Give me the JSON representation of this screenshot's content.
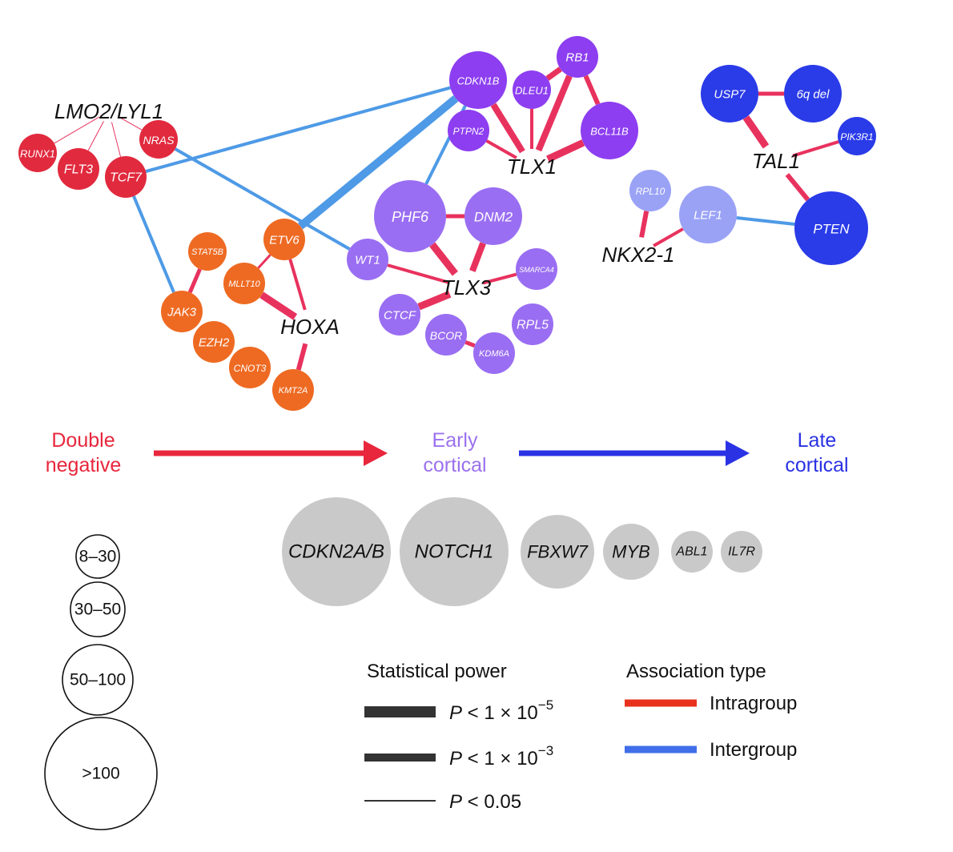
{
  "colors": {
    "double_negative": "#e12a3e",
    "hoxa_orange": "#ee6a22",
    "early_purple_dark": "#8d3ef0",
    "early_purple": "#9a6ef2",
    "late_light": "#9aa2f6",
    "late_blue": "#2a3be8",
    "intragroup": "#e8325e",
    "intergroup": "#4e9ae6",
    "grey_node": "#c9c9c9",
    "stage_red": "#e8263c",
    "stage_purple": "#9b71ee",
    "stage_blue": "#2a32e4"
  },
  "groups": [
    {
      "key": "lmo2",
      "label": "LMO2/LYL1"
    },
    {
      "key": "hoxa",
      "label": "HOXA"
    },
    {
      "key": "tlx1",
      "label": "TLX1"
    },
    {
      "key": "tlx3",
      "label": "TLX3"
    },
    {
      "key": "nkx",
      "label": "NKX2-1"
    },
    {
      "key": "tal1",
      "label": "TAL1"
    }
  ],
  "nodes": [
    {
      "key": "runx1",
      "label": "RUNX1",
      "color": "double_negative"
    },
    {
      "key": "flt3",
      "label": "FLT3",
      "color": "double_negative"
    },
    {
      "key": "tcf7",
      "label": "TCF7",
      "color": "double_negative"
    },
    {
      "key": "nras",
      "label": "NRAS",
      "color": "double_negative"
    },
    {
      "key": "stat5b",
      "label": "STAT5B",
      "color": "hoxa_orange"
    },
    {
      "key": "etv6",
      "label": "ETV6",
      "color": "hoxa_orange"
    },
    {
      "key": "mllt10",
      "label": "MLLT10",
      "color": "hoxa_orange"
    },
    {
      "key": "jak3",
      "label": "JAK3",
      "color": "hoxa_orange"
    },
    {
      "key": "ezh2",
      "label": "EZH2",
      "color": "hoxa_orange"
    },
    {
      "key": "cnot3",
      "label": "CNOT3",
      "color": "hoxa_orange"
    },
    {
      "key": "kmt2a",
      "label": "KMT2A",
      "color": "hoxa_orange"
    },
    {
      "key": "cdkn1b",
      "label": "CDKN1B",
      "color": "early_purple_dark"
    },
    {
      "key": "dleu1",
      "label": "DLEU1",
      "color": "early_purple_dark"
    },
    {
      "key": "rb1",
      "label": "RB1",
      "color": "early_purple_dark"
    },
    {
      "key": "ptpn2",
      "label": "PTPN2",
      "color": "early_purple_dark"
    },
    {
      "key": "bcl11b",
      "label": "BCL11B",
      "color": "early_purple_dark"
    },
    {
      "key": "phf6",
      "label": "PHF6",
      "color": "early_purple"
    },
    {
      "key": "dnm2",
      "label": "DNM2",
      "color": "early_purple"
    },
    {
      "key": "wt1",
      "label": "WT1",
      "color": "early_purple"
    },
    {
      "key": "smarca4",
      "label": "SMARCA4",
      "color": "early_purple"
    },
    {
      "key": "ctcf",
      "label": "CTCF",
      "color": "early_purple"
    },
    {
      "key": "bcor",
      "label": "BCOR",
      "color": "early_purple"
    },
    {
      "key": "rpl5",
      "label": "RPL5",
      "color": "early_purple"
    },
    {
      "key": "kdm6a",
      "label": "KDM6A",
      "color": "early_purple"
    },
    {
      "key": "rpl10",
      "label": "RPL10",
      "color": "late_light"
    },
    {
      "key": "lef1",
      "label": "LEF1",
      "color": "late_light"
    },
    {
      "key": "usp7",
      "label": "USP7",
      "color": "late_blue"
    },
    {
      "key": "del6q",
      "label": "6q del",
      "color": "late_blue",
      "upright": true
    },
    {
      "key": "pik3r1",
      "label": "PIK3R1",
      "color": "late_blue"
    },
    {
      "key": "pten",
      "label": "PTEN",
      "color": "late_blue"
    }
  ],
  "stages": [
    {
      "key": "dn",
      "lines": [
        "Double",
        "negative"
      ],
      "color": "stage_red"
    },
    {
      "key": "early",
      "lines": [
        "Early",
        "cortical"
      ],
      "color": "stage_purple"
    },
    {
      "key": "late",
      "lines": [
        "Late",
        "cortical"
      ],
      "color": "stage_blue"
    }
  ],
  "common_genes": [
    {
      "key": "cdkn2ab",
      "label": "CDKN2A/B"
    },
    {
      "key": "notch1",
      "label": "NOTCH1"
    },
    {
      "key": "fbxw7",
      "label": "FBXW7"
    },
    {
      "key": "myb",
      "label": "MYB"
    },
    {
      "key": "abl1",
      "label": "ABL1"
    },
    {
      "key": "il7r",
      "label": "IL7R"
    }
  ],
  "size_legend": [
    "8–30",
    "30–50",
    "50–100",
    ">100"
  ],
  "power_legend": {
    "title": "Statistical power",
    "items": [
      {
        "key": "p5",
        "P": "P",
        "text": " < 1 × 10",
        "sup": "−5"
      },
      {
        "key": "p3",
        "P": "P",
        "text": " < 1 × 10",
        "sup": "−3"
      },
      {
        "key": "p05",
        "P": "P",
        "text": " < 0.05",
        "sup": ""
      }
    ]
  },
  "association_legend": {
    "title": "Association type",
    "items": [
      {
        "key": "intra",
        "label": "Intragroup",
        "color": "#e8321e"
      },
      {
        "key": "inter",
        "label": "Intergroup",
        "color": "#3f6ee8"
      }
    ]
  }
}
